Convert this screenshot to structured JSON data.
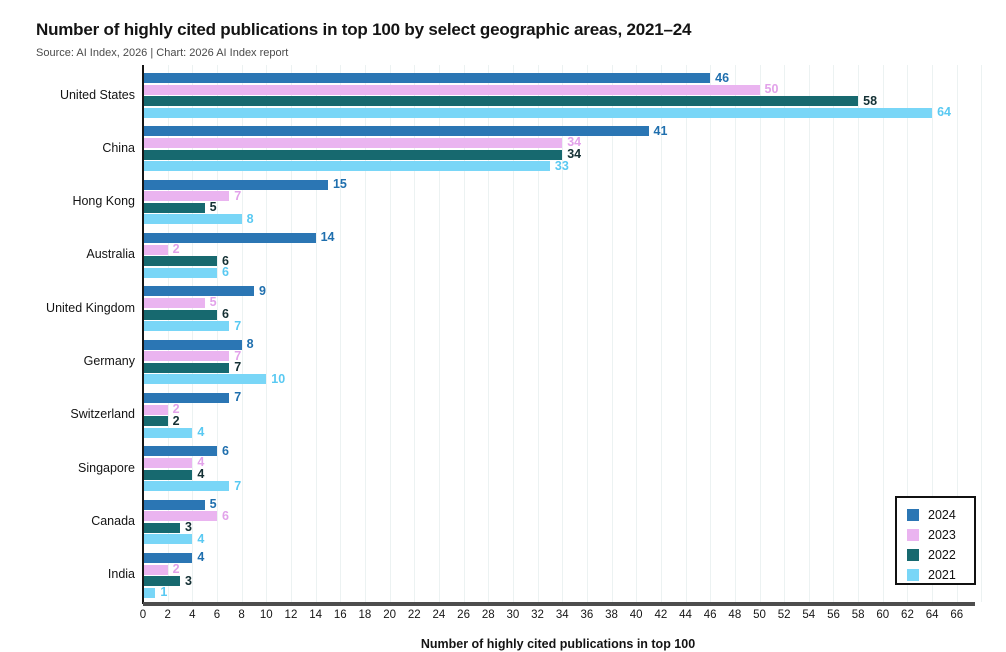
{
  "header": {
    "title": "Number of highly cited publications in top 100 by select geographic areas, 2021–24",
    "source": "Source: AI Index, 2026 | Chart: 2026 AI Index report"
  },
  "chart_data": {
    "type": "bar",
    "orientation": "horizontal",
    "title": "Number of highly cited publications in top 100 by select geographic areas, 2021–24",
    "xlabel": "Number of highly cited publications in top 100",
    "xlim": [
      0,
      68
    ],
    "x_ticks": [
      0,
      2,
      4,
      6,
      8,
      10,
      12,
      14,
      16,
      18,
      20,
      22,
      24,
      26,
      28,
      30,
      32,
      34,
      36,
      38,
      40,
      42,
      44,
      46,
      48,
      50,
      52,
      54,
      56,
      58,
      60,
      62,
      64,
      66
    ],
    "grid": "vertical",
    "legend_position": "bottom-right",
    "categories": [
      "United States",
      "China",
      "Hong Kong",
      "Australia",
      "United Kingdom",
      "Germany",
      "Switzerland",
      "Singapore",
      "Canada",
      "India"
    ],
    "series": [
      {
        "name": "2024",
        "color": "#2b76b4",
        "label_color": "#1f6fae",
        "values": [
          46,
          41,
          15,
          14,
          9,
          8,
          7,
          6,
          5,
          4
        ]
      },
      {
        "name": "2023",
        "color": "#eab4f0",
        "label_color": "#e2a2ea",
        "values": [
          50,
          34,
          7,
          2,
          5,
          7,
          2,
          4,
          6,
          2
        ]
      },
      {
        "name": "2022",
        "color": "#17696f",
        "label_color": "#143034",
        "values": [
          58,
          34,
          5,
          6,
          6,
          7,
          2,
          4,
          3,
          3
        ]
      },
      {
        "name": "2021",
        "color": "#79d6f7",
        "label_color": "#59c9f2",
        "values": [
          64,
          33,
          8,
          6,
          7,
          10,
          4,
          7,
          4,
          1
        ]
      }
    ]
  }
}
